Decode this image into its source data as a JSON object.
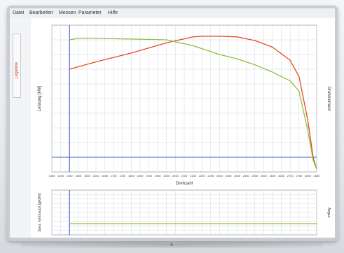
{
  "menu": {
    "items": [
      "Datei",
      "Bearbeiten",
      "Messen",
      "Parameter",
      "Hilfe"
    ]
  },
  "sidepanel": {
    "tab_label": "Legende"
  },
  "colors": {
    "red_series": "#e24a22",
    "green_series": "#8fbf3a",
    "marker_blue": "#4a5fd0",
    "grid": "#d4d7dc"
  },
  "chart_data": [
    {
      "type": "line",
      "title": "",
      "xlabel": "Drehzahl",
      "ylabel": "Leistung [kW]",
      "y2label": "Drehmoment",
      "x_ticks": [
        1350,
        1400,
        1450,
        1500,
        1550,
        1600,
        1650,
        1700,
        1750,
        1800,
        1850,
        1900,
        1950,
        2000,
        2050,
        2100,
        2150,
        2200,
        2250,
        2300,
        2350,
        2400,
        2450,
        2500,
        2550,
        2600,
        2650,
        2700,
        2750,
        2800,
        2850
      ],
      "xlim": [
        1350,
        2850
      ],
      "ylim": [
        0,
        100
      ],
      "grid": true,
      "marker_x": 1450,
      "marker_y": 10,
      "series": [
        {
          "x": [
            1450,
            1600,
            1800,
            2000,
            2150,
            2200,
            2300,
            2400,
            2500,
            2600,
            2700,
            2750,
            2800,
            2830,
            2850
          ],
          "y": [
            70,
            75,
            81,
            88,
            92,
            92.5,
            92.5,
            92,
            89.5,
            85,
            76,
            65,
            35,
            10,
            2
          ]
        },
        {
          "x": [
            1450,
            1500,
            1600,
            1800,
            2000,
            2150,
            2200,
            2300,
            2400,
            2500,
            2600,
            2700,
            2750,
            2800,
            2830,
            2850
          ],
          "y": [
            90,
            91,
            91,
            90.5,
            90,
            86,
            84,
            80,
            77,
            73,
            68,
            62,
            55,
            28,
            8,
            2
          ]
        }
      ]
    },
    {
      "type": "line",
      "title": "",
      "xlabel": "",
      "ylabel": "Spez. Verbrauch [g/kWh]",
      "y2label": "Abgas",
      "xlim": [
        1350,
        2850
      ],
      "ylim": [
        0,
        100
      ],
      "grid": true,
      "marker_x": 1450,
      "series": [
        {
          "x": [
            1450,
            2850
          ],
          "y": [
            25,
            25
          ]
        }
      ]
    }
  ]
}
